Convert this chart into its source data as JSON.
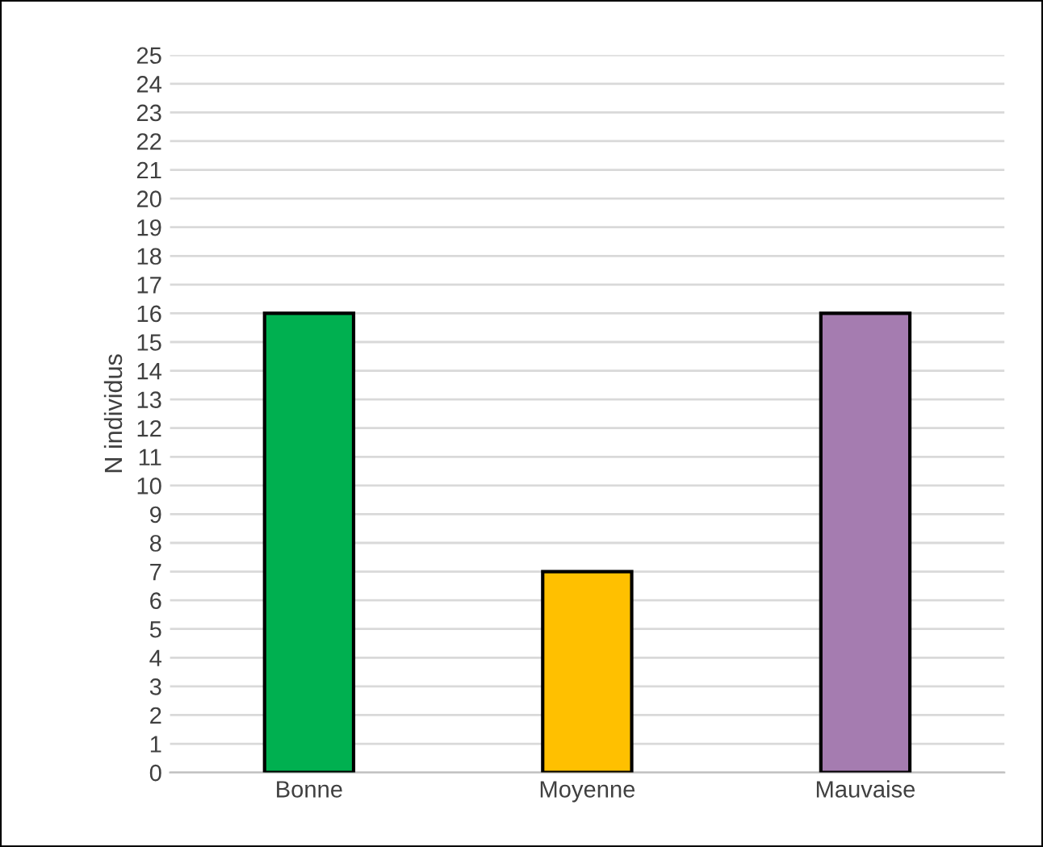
{
  "chart_data": {
    "type": "bar",
    "ylabel": "N individus",
    "categories": [
      "Bonne",
      "Moyenne",
      "Mauvaise"
    ],
    "values": [
      16,
      7,
      16
    ],
    "colors": [
      "#00b050",
      "#ffc000",
      "#a57cb0"
    ],
    "ylim": [
      0,
      25
    ],
    "yticks": [
      0,
      1,
      2,
      3,
      4,
      5,
      6,
      7,
      8,
      9,
      10,
      11,
      12,
      13,
      14,
      15,
      16,
      17,
      18,
      19,
      20,
      21,
      22,
      23,
      24,
      25
    ],
    "grid": "y"
  }
}
